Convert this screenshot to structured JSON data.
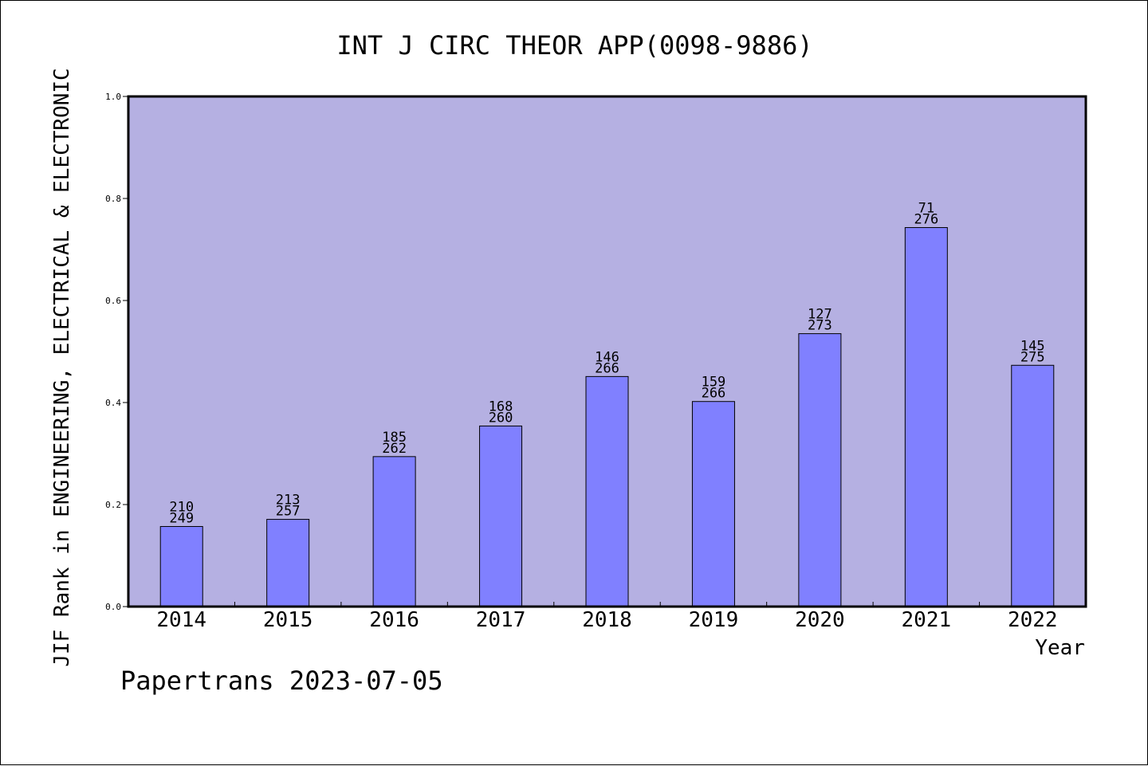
{
  "chart_data": {
    "type": "bar",
    "title": "INT J CIRC THEOR APP(0098-9886)",
    "xlabel": "Year",
    "ylabel": "JIF Rank in ENGINEERING, ELECTRICAL & ELECTRONIC",
    "categories": [
      "2014",
      "2015",
      "2016",
      "2017",
      "2018",
      "2019",
      "2020",
      "2021",
      "2022"
    ],
    "values": [
      0.157,
      0.171,
      0.294,
      0.354,
      0.451,
      0.402,
      0.535,
      0.743,
      0.473
    ],
    "rank_labels": [
      {
        "rank": "210",
        "total": "249"
      },
      {
        "rank": "213",
        "total": "257"
      },
      {
        "rank": "185",
        "total": "262"
      },
      {
        "rank": "168",
        "total": "260"
      },
      {
        "rank": "146",
        "total": "266"
      },
      {
        "rank": "159",
        "total": "266"
      },
      {
        "rank": "127",
        "total": "273"
      },
      {
        "rank": "71",
        "total": "276"
      },
      {
        "rank": "145",
        "total": "275"
      }
    ],
    "ylim": [
      0,
      1.0
    ],
    "yticks": [
      "0.0",
      "0.2",
      "0.4",
      "0.6",
      "0.8",
      "1.0"
    ],
    "grid": false,
    "colors": {
      "plot_background": "#b5b0e2",
      "bar_fill": "#8080ff",
      "bar_stroke": "#000000"
    }
  },
  "footer": "Papertrans 2023-07-05"
}
